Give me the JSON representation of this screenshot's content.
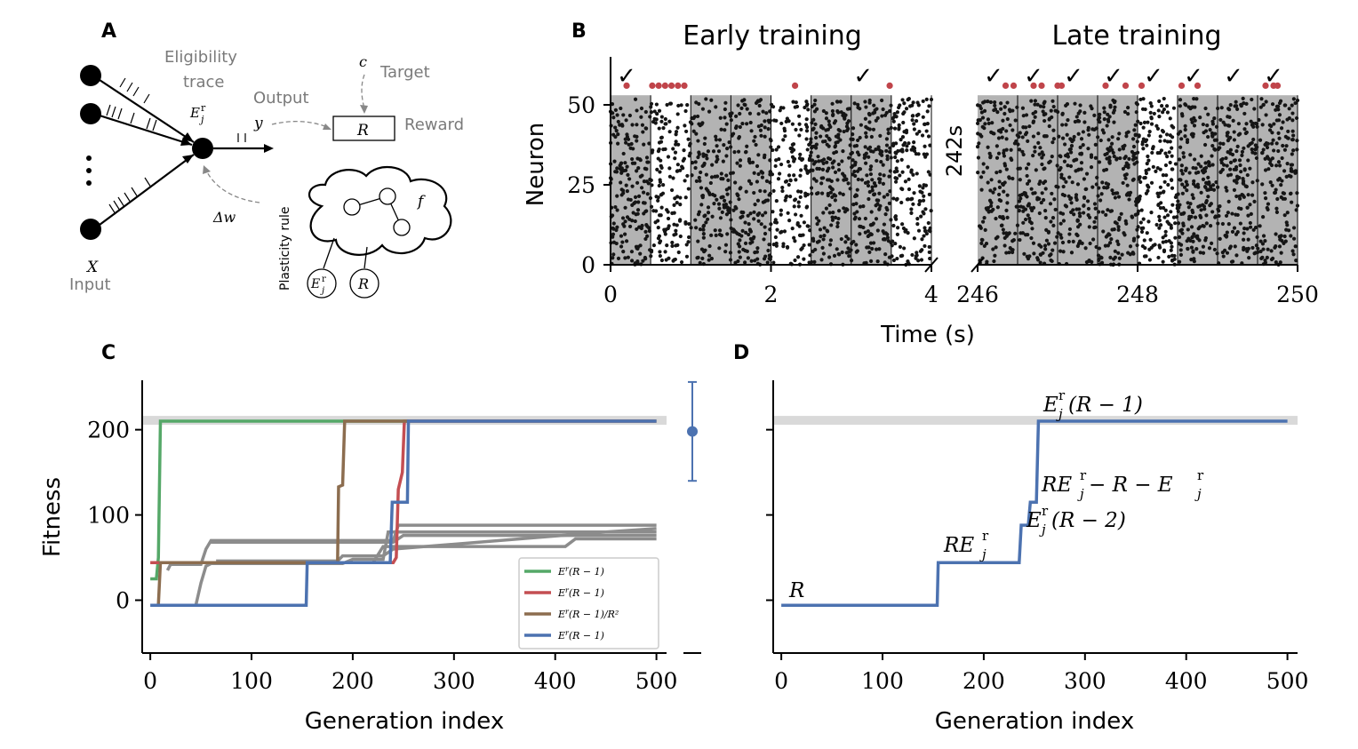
{
  "panels": {
    "a": "A",
    "b": "B",
    "c": "C",
    "d": "D"
  },
  "diagram": {
    "eligibility_1": "Eligibility",
    "eligibility_2": "trace",
    "output": "Output",
    "target": "Target",
    "reward": "Reward",
    "input": "Input",
    "plasticity_rule": "Plasticity rule",
    "var_c": "c",
    "var_y": "y",
    "var_R": "R",
    "var_X": "X",
    "var_f": "f",
    "var_dw": "Δw",
    "var_Ej": "E",
    "ej_sub": "j",
    "ej_sup": "r"
  },
  "raster": {
    "early_title": "Early training",
    "late_title": "Late training",
    "ylabel": "Neuron",
    "xlabel": "Time (s)",
    "gap_label": "242s",
    "check": "✓",
    "early_checks": [
      0.2,
      3.15
    ],
    "late_checks": [
      246.2,
      246.7,
      247.2,
      247.7,
      248.2,
      248.7,
      249.2,
      249.7
    ],
    "early_xticks": [
      "0",
      "2",
      "4"
    ],
    "late_xticks": [
      "246",
      "248",
      "250"
    ],
    "yticks": [
      "0",
      "25",
      "50"
    ],
    "xlim_early": [
      0,
      4
    ],
    "xlim_late": [
      246,
      250
    ],
    "ylim": [
      0,
      65
    ],
    "early_shaded": [
      [
        0,
        0.5
      ],
      [
        1.0,
        1.5
      ],
      [
        1.5,
        2.0
      ],
      [
        2.5,
        3.0
      ],
      [
        3.0,
        3.5
      ]
    ],
    "late_shaded": [
      [
        246.0,
        246.5
      ],
      [
        246.5,
        247.0
      ],
      [
        247.0,
        247.5
      ],
      [
        247.5,
        248.0
      ],
      [
        248.5,
        249.0
      ],
      [
        249.0,
        249.5
      ],
      [
        249.5,
        250.0
      ]
    ],
    "early_reward_dots": [
      0.2,
      0.52,
      0.6,
      0.68,
      0.76,
      0.84,
      0.92,
      2.3,
      3.48
    ],
    "late_reward_dots": [
      246.35,
      246.45,
      246.7,
      246.8,
      247.0,
      247.05,
      247.6,
      247.85,
      248.05,
      248.55,
      248.75,
      249.6,
      249.7,
      249.75
    ],
    "dot_color": "#c0444a",
    "shade_color": "#b3b3b3"
  },
  "chart_data": [
    {
      "type": "line",
      "panel": "C",
      "xlabel": "Generation index",
      "ylabel": "Fitness",
      "xticks": [
        "0",
        "100",
        "200",
        "300",
        "400",
        "500"
      ],
      "yticks": [
        "0",
        "100",
        "200"
      ],
      "xlim": [
        -8,
        510
      ],
      "ylim": [
        -62,
        258
      ],
      "reference_band": 211,
      "series": [
        {
          "name": "E_j^r(R−1)",
          "label_main": "E",
          "label_rest": "(R − 1)",
          "color": "#55a868",
          "points": [
            [
              0,
              25
            ],
            [
              6,
              25
            ],
            [
              8,
              50
            ],
            [
              10,
              210
            ],
            [
              500,
              210
            ]
          ]
        },
        {
          "name": "E_j^r(R−1)",
          "label_main": "E",
          "label_rest": "(R − 1)",
          "color": "#c44e52",
          "points": [
            [
              0,
              44
            ],
            [
              240,
              44
            ],
            [
              243,
              50
            ],
            [
              245,
              130
            ],
            [
              249,
              150
            ],
            [
              251,
              210
            ],
            [
              500,
              210
            ]
          ]
        },
        {
          "name": "E_j^r(R−1)/R^2",
          "label_main": "E",
          "label_rest": "(R − 1)/R²",
          "color": "#8c6d4f",
          "points": [
            [
              8,
              -5
            ],
            [
              10,
              44
            ],
            [
              185,
              44
            ],
            [
              186,
              133
            ],
            [
              190,
              135
            ],
            [
              192,
              210
            ],
            [
              255,
              210
            ]
          ]
        },
        {
          "name": "E_j^r(R−1)",
          "label_main": "E",
          "label_rest": "(R − 1)",
          "color": "#4c72b0",
          "points": [
            [
              0,
              -6
            ],
            [
              154,
              -6
            ],
            [
              155,
              44
            ],
            [
              237,
              44
            ],
            [
              239,
              115
            ],
            [
              254,
              115
            ],
            [
              255,
              210
            ],
            [
              500,
              210
            ]
          ]
        }
      ],
      "gray_series": [
        {
          "points": [
            [
              17,
              35
            ],
            [
              20,
              42
            ],
            [
              50,
              42
            ],
            [
              55,
              60
            ],
            [
              60,
              70
            ],
            [
              240,
              70
            ],
            [
              245,
              88
            ],
            [
              500,
              88
            ]
          ]
        },
        {
          "points": [
            [
              45,
              -6
            ],
            [
              50,
              20
            ],
            [
              55,
              40
            ],
            [
              60,
              43
            ],
            [
              190,
              43
            ],
            [
              200,
              48
            ],
            [
              230,
              48
            ],
            [
              235,
              80
            ],
            [
              500,
              80
            ]
          ]
        },
        {
          "points": [
            [
              60,
              68
            ],
            [
              240,
              68
            ],
            [
              250,
              76
            ],
            [
              500,
              76
            ]
          ]
        },
        {
          "points": [
            [
              150,
              44
            ],
            [
              220,
              44
            ],
            [
              230,
              63
            ],
            [
              410,
              63
            ],
            [
              420,
              72
            ],
            [
              500,
              72
            ]
          ]
        },
        {
          "points": [
            [
              65,
              46
            ],
            [
              185,
              46
            ],
            [
              190,
              52
            ],
            [
              230,
              52
            ],
            [
              240,
              60
            ],
            [
              450,
              80
            ],
            [
              500,
              84
            ]
          ]
        }
      ],
      "errorbar": {
        "mean": 198,
        "low": 140,
        "high": 256,
        "color": "#4c72b0"
      }
    },
    {
      "type": "line",
      "panel": "D",
      "xlabel": "Generation index",
      "xticks": [
        "0",
        "100",
        "200",
        "300",
        "400",
        "500"
      ],
      "xlim": [
        -8,
        510
      ],
      "ylim": [
        -62,
        258
      ],
      "reference_band": 211,
      "series": [
        {
          "color": "#4c72b0",
          "points": [
            [
              0,
              -6
            ],
            [
              154,
              -6
            ],
            [
              155,
              44
            ],
            [
              235,
              44
            ],
            [
              237,
              88
            ],
            [
              244,
              88
            ],
            [
              246,
              115
            ],
            [
              252,
              115
            ],
            [
              254,
              210
            ],
            [
              500,
              210
            ]
          ]
        }
      ],
      "annotations": {
        "a1": "R",
        "a2_main": "RE",
        "a3_main": "E",
        "a3_rest": "(R − 2)",
        "a4_main": "RE",
        "a4_mid": " − R − E",
        "a5_main": "E",
        "a5_rest": "(R − 1)"
      }
    }
  ]
}
